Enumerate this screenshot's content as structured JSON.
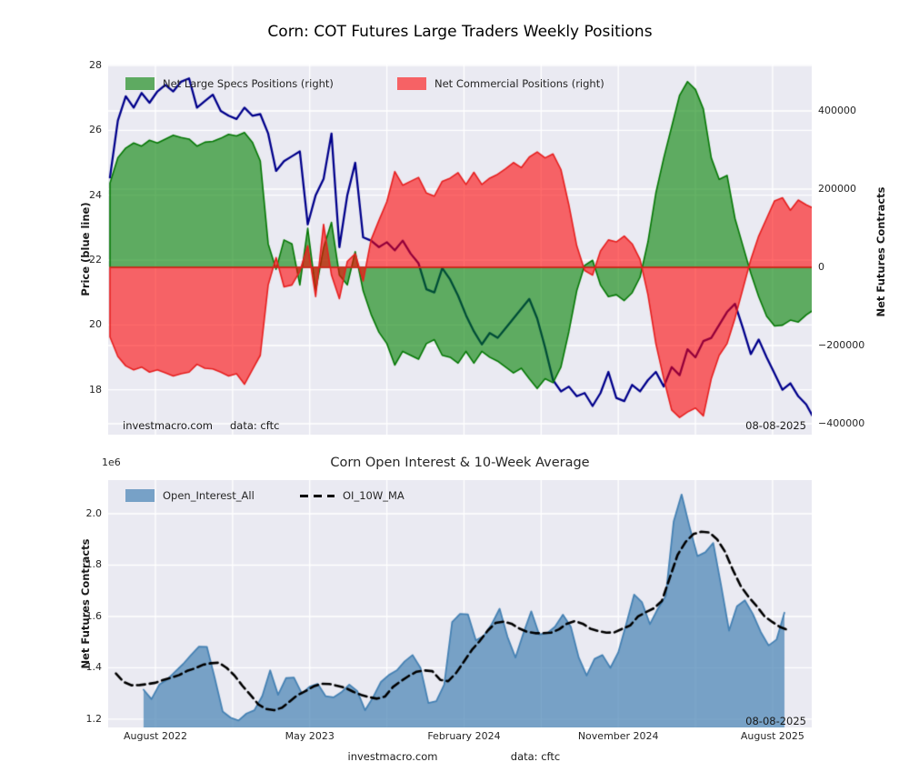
{
  "figure": {
    "title": "Corn: COT Futures Large Traders Weekly Positions",
    "background": "#ffffff",
    "axes_background": "#eaeaf2",
    "grid_color": "#ffffff",
    "footer": {
      "source": "investmacro.com",
      "data_source": "data: cftc"
    }
  },
  "chart_data": [
    {
      "type": "area",
      "title": "Corn: COT Futures Large Traders Weekly Positions",
      "grid": true,
      "legend_position": "upper left",
      "x_axis": {
        "tick_labels": [
          "August 2022",
          "May 2023",
          "February 2024",
          "November 2024",
          "August 2025"
        ],
        "tick_weeks": [
          0,
          39,
          78,
          117,
          156
        ],
        "grid_weeks": [
          0,
          19.5,
          39,
          58.5,
          78,
          97.5,
          117,
          136.5,
          156
        ],
        "range_weeks": [
          -11.95,
          165.9
        ],
        "labels_visible": false
      },
      "y_left": {
        "label": "Price (blue line)",
        "ticks": [
          28,
          26,
          24,
          22,
          20,
          18
        ],
        "tick_labels": [
          "28",
          "26",
          "24",
          "22",
          "20",
          "18"
        ],
        "range": [
          16.617,
          28.028
        ]
      },
      "y_right": {
        "label": "Net Futures Contracts",
        "ticks": [
          400000,
          200000,
          0,
          -200000,
          -400000
        ],
        "tick_labels": [
          "400000",
          "200000",
          "0",
          "−200000",
          "−400000"
        ],
        "range": [
          -427900,
          518600
        ]
      },
      "legend": [
        {
          "label": "Net Large Specs Positions (right)",
          "color": "#5eaa61",
          "type": "patch"
        },
        {
          "label": "Net Commercial Positions (right)",
          "color": "#f66265",
          "type": "patch"
        }
      ],
      "annotations": {
        "source": "investmacro.com",
        "data_source": "data: cftc",
        "date": "08-08-2025"
      },
      "series": [
        {
          "name": "Price",
          "axis": "left",
          "style": "line",
          "color": "#00008b",
          "line_width": 2.3,
          "start_week": -11.5,
          "step_weeks": 2,
          "values": [
            24.55,
            26.3,
            27.05,
            26.7,
            27.15,
            26.85,
            27.2,
            27.4,
            27.2,
            27.5,
            27.6,
            26.7,
            26.9,
            27.1,
            26.6,
            26.45,
            26.35,
            26.7,
            26.45,
            26.5,
            25.9,
            24.75,
            25.05,
            25.2,
            25.35,
            23.1,
            24.0,
            24.5,
            25.9,
            22.4,
            24.0,
            25.0,
            22.7,
            22.6,
            22.4,
            22.55,
            22.3,
            22.6,
            22.2,
            21.9,
            21.1,
            21.0,
            21.75,
            21.4,
            20.9,
            20.3,
            19.8,
            19.4,
            19.75,
            19.6,
            19.9,
            20.2,
            20.5,
            20.8,
            20.2,
            19.3,
            18.3,
            17.95,
            18.1,
            17.8,
            17.9,
            17.5,
            17.9,
            18.55,
            17.75,
            17.65,
            18.15,
            17.95,
            18.3,
            18.55,
            18.1,
            18.7,
            18.45,
            19.25,
            19.0,
            19.5,
            19.6,
            20.0,
            20.4,
            20.65,
            19.9,
            19.1,
            19.55,
            19.0,
            18.5,
            18.0,
            18.2,
            17.8,
            17.55,
            17.1
          ]
        },
        {
          "name": "Net Large Specs Positions (right)",
          "axis": "right",
          "style": "area",
          "stroke": "closed",
          "color": "#008000",
          "fill_alpha": 0.6,
          "edge_color": "#067806",
          "line_width": 1.6,
          "start_week": -11.5,
          "step_weeks": 2,
          "values": [
            215000,
            280000,
            305000,
            318000,
            310000,
            325000,
            318000,
            328000,
            338000,
            332000,
            328000,
            310000,
            320000,
            322000,
            330000,
            340000,
            336000,
            345000,
            320000,
            272000,
            60000,
            -5000,
            70000,
            60000,
            -45000,
            100000,
            -60000,
            50000,
            115000,
            -20000,
            -45000,
            40000,
            -60000,
            -120000,
            -166000,
            -195000,
            -250000,
            -215000,
            -225000,
            -235000,
            -195000,
            -185000,
            -225000,
            -230000,
            -245000,
            -215000,
            -245000,
            -215000,
            -230000,
            -240000,
            -255000,
            -270000,
            -258000,
            -285000,
            -310000,
            -285000,
            -295000,
            -255000,
            -165000,
            -60000,
            5000,
            18000,
            -45000,
            -75000,
            -70000,
            -85000,
            -65000,
            -25000,
            65000,
            190000,
            280000,
            360000,
            440000,
            475000,
            455000,
            405000,
            280000,
            225000,
            235000,
            125000,
            55000,
            -15000,
            -75000,
            -125000,
            -150000,
            -148000,
            -135000,
            -140000,
            -122000,
            -108000
          ]
        },
        {
          "name": "Net Commercial Positions (right)",
          "axis": "right",
          "style": "area",
          "stroke": "closed",
          "color": "#ff0000",
          "fill_alpha": 0.58,
          "edge_color": "#e62020",
          "line_width": 1.6,
          "start_week": -11.5,
          "step_weeks": 2,
          "values": [
            -178000,
            -228000,
            -252000,
            -262000,
            -255000,
            -268000,
            -262000,
            -270000,
            -278000,
            -272000,
            -268000,
            -248000,
            -258000,
            -260000,
            -268000,
            -278000,
            -272000,
            -299000,
            -262000,
            -225000,
            -45000,
            25000,
            -50000,
            -45000,
            -10000,
            55000,
            -75000,
            110000,
            -20000,
            -80000,
            15000,
            35000,
            -35000,
            70000,
            120000,
            168000,
            245000,
            210000,
            220000,
            230000,
            190000,
            182000,
            220000,
            228000,
            242000,
            212000,
            243000,
            212000,
            228000,
            238000,
            252000,
            268000,
            255000,
            282000,
            295000,
            280000,
            290000,
            250000,
            160000,
            55000,
            -8000,
            -20000,
            42000,
            70000,
            65000,
            80000,
            60000,
            20000,
            -70000,
            -195000,
            -285000,
            -365000,
            -384000,
            -370000,
            -360000,
            -380000,
            -285000,
            -225000,
            -195000,
            -130000,
            -55000,
            20000,
            80000,
            125000,
            170000,
            178000,
            146000,
            172000,
            160000,
            150000
          ]
        }
      ]
    },
    {
      "type": "area",
      "title": "Corn Open Interest & 10-Week Average",
      "grid": true,
      "legend_position": "upper left",
      "offset_label": "1e6",
      "x_axis": {
        "tick_labels": [
          "August 2022",
          "May 2023",
          "February 2024",
          "November 2024",
          "August 2025"
        ],
        "tick_weeks": [
          0,
          39,
          78,
          117,
          156
        ],
        "grid_weeks": [
          0,
          19.5,
          39,
          58.5,
          78,
          97.5,
          117,
          136.5,
          156
        ],
        "range_weeks": [
          -11.95,
          165.9
        ],
        "labels_visible": true
      },
      "y_left": {
        "label": "Net Futures Contracts",
        "ticks": [
          2.0,
          1.8,
          1.6,
          1.4,
          1.2
        ],
        "tick_labels": [
          "2.0",
          "1.8",
          "1.6",
          "1.4",
          "1.2"
        ],
        "range": [
          1.168,
          2.131
        ]
      },
      "legend": [
        {
          "label": "Open_Interest_All",
          "color": "#77a1c7",
          "type": "patch"
        },
        {
          "label": "OI_10W_MA",
          "color": "#000000",
          "type": "dashed-line"
        }
      ],
      "annotations": {
        "date": "08-08-2025"
      },
      "series": [
        {
          "name": "Open_Interest_All",
          "axis": "left",
          "style": "area",
          "baseline": "bottom",
          "color": "#4682b4",
          "fill_alpha": 0.7,
          "edge_color": "#4682b4",
          "line_width": 1.8,
          "start_week": -3,
          "step_weeks": 2,
          "values": [
            1.315,
            1.278,
            1.335,
            1.355,
            1.385,
            1.415,
            1.45,
            1.483,
            1.482,
            1.36,
            1.23,
            1.206,
            1.195,
            1.222,
            1.235,
            1.29,
            1.39,
            1.295,
            1.36,
            1.362,
            1.3,
            1.327,
            1.338,
            1.29,
            1.285,
            1.305,
            1.335,
            1.31,
            1.235,
            1.285,
            1.345,
            1.372,
            1.39,
            1.425,
            1.45,
            1.4,
            1.263,
            1.27,
            1.335,
            1.578,
            1.61,
            1.608,
            1.507,
            1.525,
            1.57,
            1.63,
            1.52,
            1.44,
            1.534,
            1.62,
            1.53,
            1.535,
            1.56,
            1.607,
            1.56,
            1.44,
            1.37,
            1.435,
            1.45,
            1.4,
            1.46,
            1.57,
            1.685,
            1.655,
            1.57,
            1.63,
            1.68,
            1.97,
            2.075,
            1.95,
            1.835,
            1.85,
            1.886,
            1.72,
            1.545,
            1.64,
            1.663,
            1.61,
            1.54,
            1.487,
            1.51,
            1.615
          ]
        },
        {
          "name": "OI_10W_MA",
          "axis": "left",
          "style": "line",
          "color": "#000000",
          "line_width": 2.6,
          "dash": [
            9,
            5
          ],
          "start_week": -10,
          "step_weeks": 2,
          "values": [
            1.378,
            1.345,
            1.332,
            1.333,
            1.337,
            1.342,
            1.353,
            1.362,
            1.372,
            1.388,
            1.398,
            1.412,
            1.418,
            1.42,
            1.4,
            1.37,
            1.33,
            1.295,
            1.258,
            1.24,
            1.235,
            1.245,
            1.27,
            1.295,
            1.31,
            1.328,
            1.338,
            1.337,
            1.33,
            1.322,
            1.307,
            1.295,
            1.286,
            1.28,
            1.288,
            1.325,
            1.348,
            1.368,
            1.385,
            1.39,
            1.387,
            1.353,
            1.348,
            1.38,
            1.425,
            1.47,
            1.505,
            1.545,
            1.575,
            1.58,
            1.572,
            1.553,
            1.54,
            1.535,
            1.535,
            1.537,
            1.55,
            1.572,
            1.582,
            1.572,
            1.552,
            1.543,
            1.537,
            1.538,
            1.552,
            1.565,
            1.6,
            1.617,
            1.632,
            1.66,
            1.75,
            1.84,
            1.89,
            1.921,
            1.93,
            1.927,
            1.9,
            1.852,
            1.78,
            1.717,
            1.675,
            1.64,
            1.6,
            1.578,
            1.558,
            1.547
          ]
        }
      ]
    }
  ]
}
